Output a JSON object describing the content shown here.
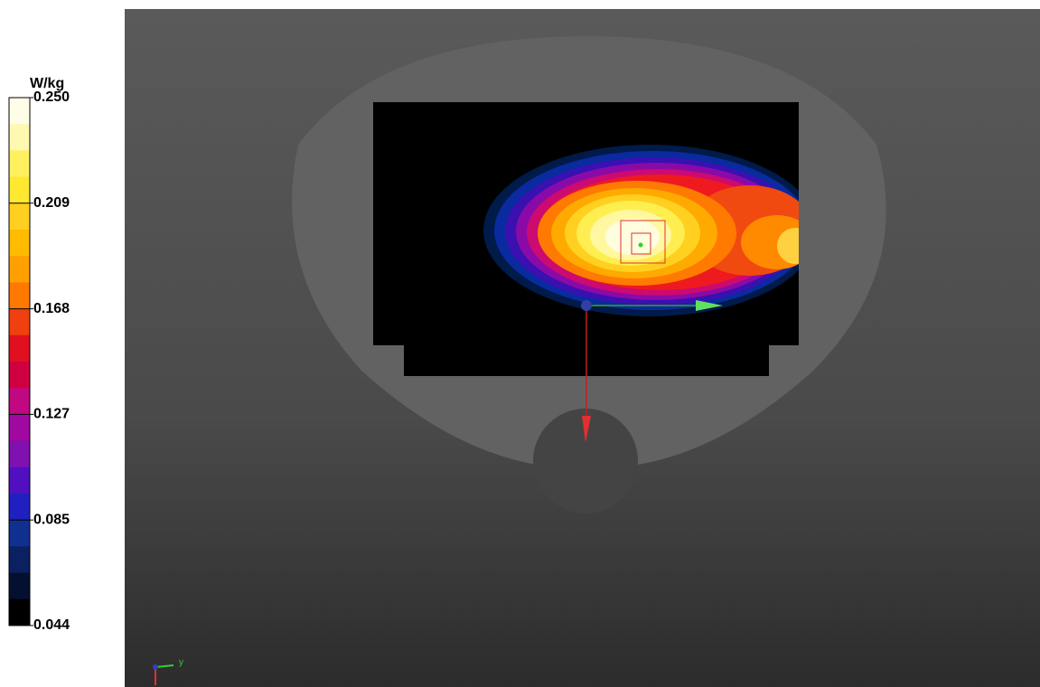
{
  "colorbar": {
    "unit": "W/kg",
    "labels": [
      "0.250",
      "0.209",
      "0.168",
      "0.127",
      "0.085",
      "0.044"
    ]
  },
  "axis_triad": {
    "y_label": "y"
  }
}
